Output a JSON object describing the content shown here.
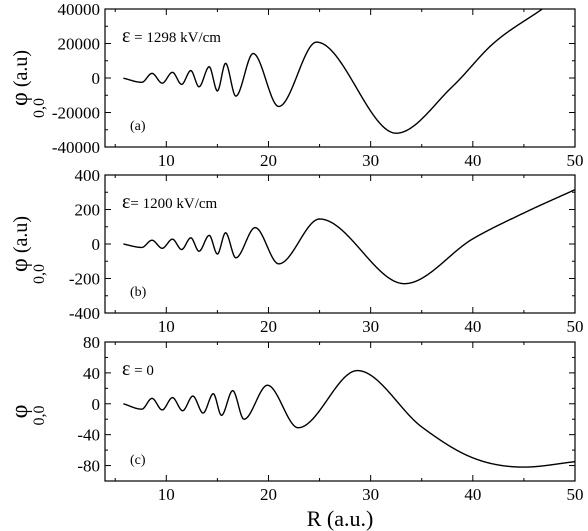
{
  "chart_data": [
    {
      "type": "line",
      "panel_label": "(a)",
      "annotation": {
        "symbol": "ε",
        "text": " = 1298 kV/cm"
      },
      "ylabel": {
        "main": "φ",
        "sub": "0,0",
        "units": " (a.u)"
      },
      "xlim": [
        4,
        50
      ],
      "ylim": [
        -40000,
        40000
      ],
      "x_ticks": [
        10,
        20,
        30,
        40,
        50
      ],
      "y_ticks": [
        -40000,
        -20000,
        0,
        20000,
        40000
      ],
      "x_tick_labels_shown": true,
      "series": [
        {
          "points": [
            [
              5.8,
              -100
            ],
            [
              7.6,
              -2500
            ],
            [
              8.6,
              2700
            ],
            [
              9.6,
              -3000
            ],
            [
              10.6,
              3300
            ],
            [
              11.5,
              -3700
            ],
            [
              12.4,
              4300
            ],
            [
              13.2,
              -5100
            ],
            [
              14.2,
              6500
            ],
            [
              15.0,
              -7500
            ],
            [
              15.8,
              8500
            ],
            [
              16.8,
              -10500
            ],
            [
              18.5,
              14200
            ],
            [
              21.0,
              -16500
            ],
            [
              24.7,
              20800
            ],
            [
              32.5,
              -32000
            ],
            [
              38.0,
              -5000
            ],
            [
              42.0,
              20000
            ],
            [
              46.8,
              40000
            ]
          ]
        }
      ]
    },
    {
      "type": "line",
      "panel_label": "(b)",
      "annotation": {
        "symbol": "ε",
        "text": "= 1200 kV/cm"
      },
      "ylabel": {
        "main": "φ",
        "sub": "0,0",
        "units": " (a.u)"
      },
      "xlim": [
        4,
        50
      ],
      "ylim": [
        -400,
        400
      ],
      "x_ticks": [
        10,
        20,
        30,
        40,
        50
      ],
      "y_ticks": [
        -400,
        -200,
        0,
        200,
        400
      ],
      "x_tick_labels_shown": true,
      "series": [
        {
          "points": [
            [
              5.8,
              0
            ],
            [
              7.6,
              -20
            ],
            [
              8.6,
              22
            ],
            [
              9.6,
              -25
            ],
            [
              10.6,
              28
            ],
            [
              11.5,
              -32
            ],
            [
              12.4,
              36
            ],
            [
              13.2,
              -42
            ],
            [
              14.2,
              50
            ],
            [
              15.0,
              -58
            ],
            [
              15.8,
              65
            ],
            [
              16.8,
              -80
            ],
            [
              18.7,
              95
            ],
            [
              21.0,
              -115
            ],
            [
              25.0,
              145
            ],
            [
              33.3,
              -230
            ],
            [
              40.0,
              30
            ],
            [
              45.0,
              180
            ],
            [
              50.0,
              315
            ]
          ]
        }
      ]
    },
    {
      "type": "line",
      "panel_label": "(c)",
      "annotation": {
        "symbol": "ε",
        "text": " = 0"
      },
      "ylabel": {
        "main": "φ",
        "sub": "0,0",
        "units": ""
      },
      "xlabel": "R (a.u.)",
      "xlim": [
        4,
        50
      ],
      "ylim": [
        -100,
        80
      ],
      "x_ticks": [
        10,
        20,
        30,
        40,
        50
      ],
      "y_ticks": [
        -80,
        -40,
        0,
        40,
        80
      ],
      "x_tick_labels_shown": true,
      "series": [
        {
          "points": [
            [
              5.8,
              0
            ],
            [
              7.6,
              -7
            ],
            [
              8.6,
              7
            ],
            [
              9.6,
              -8
            ],
            [
              10.6,
              8
            ],
            [
              11.6,
              -9
            ],
            [
              12.6,
              10
            ],
            [
              13.6,
              -12
            ],
            [
              14.6,
              13
            ],
            [
              15.4,
              -15
            ],
            [
              16.5,
              17
            ],
            [
              17.6,
              -20
            ],
            [
              19.9,
              24
            ],
            [
              22.9,
              -31
            ],
            [
              28.7,
              43
            ],
            [
              35.0,
              -30
            ],
            [
              40.0,
              -70
            ],
            [
              45.0,
              -82
            ],
            [
              50.0,
              -75
            ]
          ]
        }
      ]
    }
  ]
}
